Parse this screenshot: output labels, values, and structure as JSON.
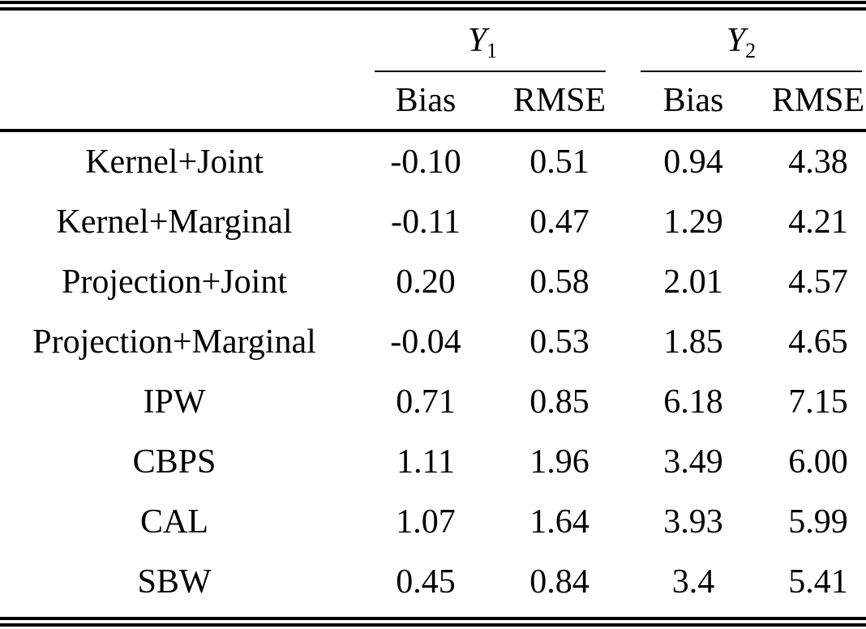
{
  "table": {
    "groups": [
      {
        "symbol": "Y",
        "subscript": "1",
        "cols": [
          "Bias",
          "RMSE"
        ]
      },
      {
        "symbol": "Y",
        "subscript": "2",
        "cols": [
          "Bias",
          "RMSE"
        ]
      }
    ],
    "rows": [
      {
        "label": "Kernel+Joint",
        "values": [
          "-0.10",
          "0.51",
          "0.94",
          "4.38"
        ]
      },
      {
        "label": "Kernel+Marginal",
        "values": [
          "-0.11",
          "0.47",
          "1.29",
          "4.21"
        ]
      },
      {
        "label": "Projection+Joint",
        "values": [
          "0.20",
          "0.58",
          "2.01",
          "4.57"
        ]
      },
      {
        "label": "Projection+Marginal",
        "values": [
          "-0.04",
          "0.53",
          "1.85",
          "4.65"
        ]
      },
      {
        "label": "IPW",
        "values": [
          "0.71",
          "0.85",
          "6.18",
          "7.15"
        ]
      },
      {
        "label": "CBPS",
        "values": [
          "1.11",
          "1.96",
          "3.49",
          "6.00"
        ]
      },
      {
        "label": "CAL",
        "values": [
          "1.07",
          "1.64",
          "3.93",
          "5.99"
        ]
      },
      {
        "label": "SBW",
        "values": [
          "0.45",
          "0.84",
          "3.4",
          "5.41"
        ]
      }
    ],
    "colors": {
      "text": "#000000",
      "background": "#ffffff",
      "rule": "#000000"
    }
  }
}
